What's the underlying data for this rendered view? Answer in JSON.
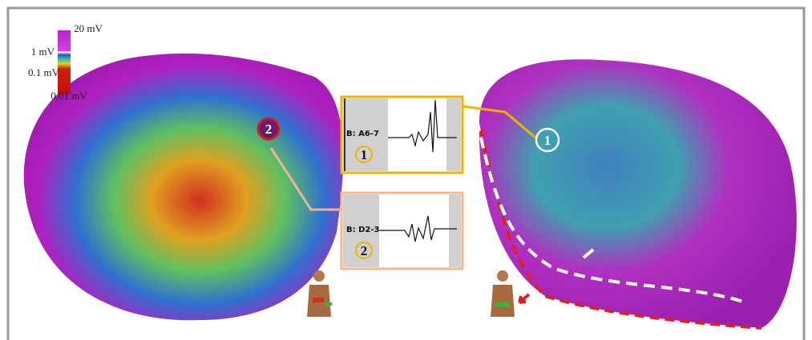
{
  "colorbar": {
    "labels": [
      "20 mV",
      "1 mV",
      "0.1 mV",
      "0.01 mV"
    ]
  },
  "electrograms": [
    {
      "channel": "B: A6-7",
      "marker": "1"
    },
    {
      "channel": "B: D2-3",
      "marker": "2"
    }
  ],
  "map_markers": [
    "2",
    "1"
  ]
}
